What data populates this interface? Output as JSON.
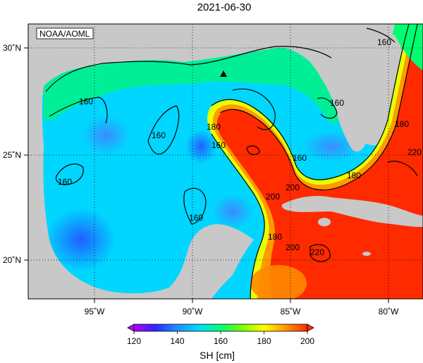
{
  "title": "2021-06-30",
  "credit": "NOAA/AOML",
  "map": {
    "lon_range": [
      -98,
      -78
    ],
    "lat_range": [
      18,
      31
    ],
    "x_ticks": [
      {
        "lon": -95,
        "label": "95˚W"
      },
      {
        "lon": -90,
        "label": "90˚W"
      },
      {
        "lon": -85,
        "label": "85˚W"
      },
      {
        "lon": -80,
        "label": "80˚W"
      }
    ],
    "y_ticks": [
      {
        "lat": 30,
        "label": "30˚N"
      },
      {
        "lat": 25,
        "label": "25˚N"
      },
      {
        "lat": 20,
        "label": "20˚N"
      }
    ],
    "grid": "dotted",
    "land_color": "#c8c8c8",
    "marker": {
      "type": "triangle",
      "lon": -88.3,
      "lat": 28.7
    },
    "contour_labels": [
      "160",
      "160",
      "160",
      "160",
      "160",
      "160",
      "180",
      "160",
      "180",
      "200",
      "200",
      "220",
      "180",
      "160",
      "180",
      "200",
      "220"
    ]
  },
  "colorbar": {
    "label": "SH [cm]",
    "range": [
      120,
      200
    ],
    "ticks": [
      "120",
      "140",
      "160",
      "180",
      "200"
    ],
    "colors": [
      "#b400ff",
      "#2a2aff",
      "#1e90ff",
      "#00dcff",
      "#00ff78",
      "#7cff00",
      "#ffff00",
      "#ff9600",
      "#ff2a00"
    ]
  }
}
